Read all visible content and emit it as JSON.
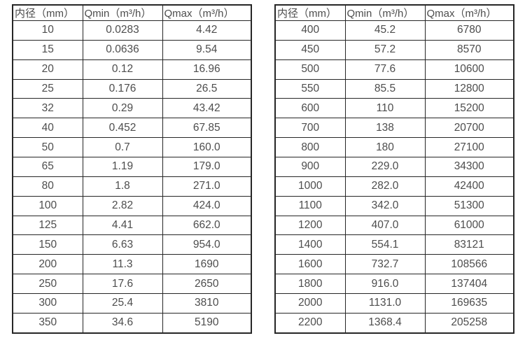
{
  "colors": {
    "border": "#262626",
    "text": "#4d4d4d",
    "background": "#ffffff"
  },
  "tables": [
    {
      "id": "small-diameters",
      "headers": [
        "内径（mm）",
        "Qmin（m³/h）",
        "Qmax（m³/h）"
      ],
      "rows": [
        [
          "10",
          "0.0283",
          "4.42"
        ],
        [
          "15",
          "0.0636",
          "9.54"
        ],
        [
          "20",
          "0.12",
          "16.96"
        ],
        [
          "25",
          "0.176",
          "26.5"
        ],
        [
          "32",
          "0.29",
          "43.42"
        ],
        [
          "40",
          "0.452",
          "67.85"
        ],
        [
          "50",
          "0.7",
          "160.0"
        ],
        [
          "65",
          "1.19",
          "179.0"
        ],
        [
          "80",
          "1.8",
          "271.0"
        ],
        [
          "100",
          "2.82",
          "424.0"
        ],
        [
          "125",
          "4.41",
          "662.0"
        ],
        [
          "150",
          "6.63",
          "954.0"
        ],
        [
          "200",
          "11.3",
          "1690"
        ],
        [
          "250",
          "17.6",
          "2650"
        ],
        [
          "300",
          "25.4",
          "3810"
        ],
        [
          "350",
          "34.6",
          "5190"
        ]
      ]
    },
    {
      "id": "large-diameters",
      "headers": [
        "内径（mm）",
        "Qmin（m³/h）",
        "Qmax（m³/h）"
      ],
      "rows": [
        [
          "400",
          "45.2",
          "6780"
        ],
        [
          "450",
          "57.2",
          "8570"
        ],
        [
          "500",
          "77.6",
          "10600"
        ],
        [
          "550",
          "85.5",
          "12800"
        ],
        [
          "600",
          "110",
          "15200"
        ],
        [
          "700",
          "138",
          "20700"
        ],
        [
          "800",
          "180",
          "27100"
        ],
        [
          "900",
          "229.0",
          "34300"
        ],
        [
          "1000",
          "282.0",
          "42400"
        ],
        [
          "1100",
          "342.0",
          "51300"
        ],
        [
          "1200",
          "407.0",
          "61000"
        ],
        [
          "1400",
          "554.1",
          "83121"
        ],
        [
          "1600",
          "732.7",
          "108566"
        ],
        [
          "1800",
          "916.0",
          "137404"
        ],
        [
          "2000",
          "1131.0",
          "169635"
        ],
        [
          "2200",
          "1368.4",
          "205258"
        ]
      ]
    }
  ]
}
